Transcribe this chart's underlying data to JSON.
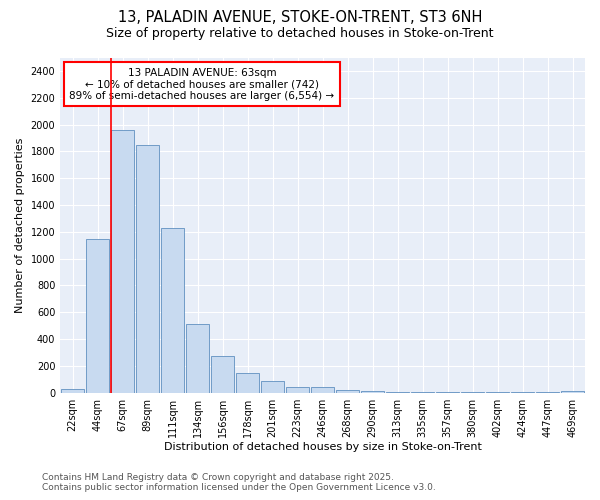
{
  "title1": "13, PALADIN AVENUE, STOKE-ON-TRENT, ST3 6NH",
  "title2": "Size of property relative to detached houses in Stoke-on-Trent",
  "xlabel": "Distribution of detached houses by size in Stoke-on-Trent",
  "ylabel": "Number of detached properties",
  "categories": [
    "22sqm",
    "44sqm",
    "67sqm",
    "89sqm",
    "111sqm",
    "134sqm",
    "156sqm",
    "178sqm",
    "201sqm",
    "223sqm",
    "246sqm",
    "268sqm",
    "290sqm",
    "313sqm",
    "335sqm",
    "357sqm",
    "380sqm",
    "402sqm",
    "424sqm",
    "447sqm",
    "469sqm"
  ],
  "values": [
    25,
    1150,
    1960,
    1850,
    1230,
    515,
    275,
    150,
    90,
    45,
    42,
    22,
    15,
    8,
    5,
    4,
    3,
    2,
    2,
    2,
    15
  ],
  "bar_color": "#c8daf0",
  "bar_edgecolor": "#6090c0",
  "vline_color": "red",
  "vline_x_idx": 2,
  "annotation_title": "13 PALADIN AVENUE: 63sqm",
  "annotation_line1": "← 10% of detached houses are smaller (742)",
  "annotation_line2": "89% of semi-detached houses are larger (6,554) →",
  "annotation_box_color": "white",
  "annotation_box_edgecolor": "red",
  "ylim": [
    0,
    2500
  ],
  "yticks": [
    0,
    200,
    400,
    600,
    800,
    1000,
    1200,
    1400,
    1600,
    1800,
    2000,
    2200,
    2400
  ],
  "bg_color": "#ffffff",
  "plot_bg_color": "#e8eef8",
  "grid_color": "#ffffff",
  "footer1": "Contains HM Land Registry data © Crown copyright and database right 2025.",
  "footer2": "Contains public sector information licensed under the Open Government Licence v3.0.",
  "title_fontsize": 10.5,
  "subtitle_fontsize": 9,
  "axis_label_fontsize": 8,
  "tick_fontsize": 7,
  "annotation_fontsize": 7.5,
  "footer_fontsize": 6.5
}
